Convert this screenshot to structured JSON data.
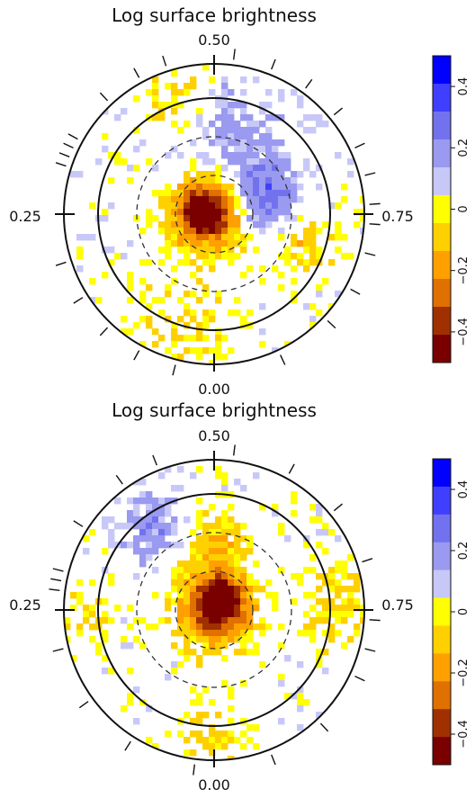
{
  "chart_data": [
    {
      "type": "heatmap",
      "title": "Log surface brightness",
      "phase_labels": {
        "top": "0.50",
        "left": "0.25",
        "right": "0.75",
        "bottom": "0.00"
      },
      "colorbar": {
        "range": [
          -0.5,
          0.5
        ],
        "ticks": [
          "0.4",
          "0.2",
          "0",
          "−0.2",
          "−0.4"
        ],
        "tick_values": [
          0.4,
          0.2,
          0.0,
          -0.2,
          -0.4
        ],
        "levels": [
          {
            "value": 0.45,
            "color": "#0000ff"
          },
          {
            "value": 0.35,
            "color": "#3f3fff"
          },
          {
            "value": 0.25,
            "color": "#7272ef"
          },
          {
            "value": 0.15,
            "color": "#9a9af0"
          },
          {
            "value": 0.05,
            "color": "#c8c8f8"
          },
          {
            "value": -0.05,
            "color": "#ffff00"
          },
          {
            "value": -0.15,
            "color": "#ffd000"
          },
          {
            "value": -0.25,
            "color": "#ffa000"
          },
          {
            "value": -0.35,
            "color": "#e07000"
          },
          {
            "value": -0.45,
            "color": "#a03000"
          },
          {
            "value": -0.5,
            "color": "#7a0000"
          }
        ]
      },
      "observed_phases": [
        0.48,
        0.44,
        0.4,
        0.36,
        0.32,
        0.29,
        0.26,
        0.24,
        0.21,
        0.17,
        0.13,
        0.07,
        0.96,
        0.92,
        0.88,
        0.84,
        0.8,
        0.7,
        0.69,
        0.68,
        0.67,
        0.62,
        0.58,
        0.55
      ],
      "features": [
        {
          "phase": 0.0,
          "radius": 0.0,
          "size": 0.18,
          "value": -0.33
        },
        {
          "phase": 0.7,
          "radius": 0.08,
          "size": 0.12,
          "value": -0.42
        },
        {
          "phase": 0.3,
          "radius": 0.32,
          "size": 0.16,
          "value": 0.28
        },
        {
          "phase": 0.45,
          "radius": 0.55,
          "size": 0.22,
          "value": 0.12
        },
        {
          "phase": 0.95,
          "radius": 0.82,
          "size": 0.22,
          "value": -0.08
        },
        {
          "phase": 0.55,
          "radius": 0.8,
          "size": 0.14,
          "value": -0.1
        },
        {
          "phase": 0.2,
          "radius": 0.62,
          "size": 0.12,
          "value": -0.15
        }
      ]
    },
    {
      "type": "heatmap",
      "title": "Log surface brightness",
      "phase_labels": {
        "top": "0.50",
        "left": "0.25",
        "right": "0.75",
        "bottom": "0.00"
      },
      "colorbar": {
        "range": [
          -0.5,
          0.5
        ],
        "ticks": [
          "0.4",
          "0.2",
          "0",
          "−0.2",
          "−0.4"
        ],
        "tick_values": [
          0.4,
          0.2,
          0.0,
          -0.2,
          -0.4
        ],
        "levels": [
          {
            "value": 0.45,
            "color": "#0000ff"
          },
          {
            "value": 0.35,
            "color": "#3f3fff"
          },
          {
            "value": 0.25,
            "color": "#7272ef"
          },
          {
            "value": 0.15,
            "color": "#9a9af0"
          },
          {
            "value": 0.05,
            "color": "#c8c8f8"
          },
          {
            "value": -0.05,
            "color": "#ffff00"
          },
          {
            "value": -0.15,
            "color": "#ffd000"
          },
          {
            "value": -0.25,
            "color": "#ffa000"
          },
          {
            "value": -0.35,
            "color": "#e07000"
          },
          {
            "value": -0.45,
            "color": "#a03000"
          },
          {
            "value": -0.5,
            "color": "#7a0000"
          }
        ]
      },
      "observed_phases": [
        0.48,
        0.42,
        0.36,
        0.3,
        0.24,
        0.21,
        0.18,
        0.12,
        0.06,
        0.98,
        0.91,
        0.85,
        0.79,
        0.73,
        0.72,
        0.71,
        0.66,
        0.6,
        0.56
      ],
      "features": [
        {
          "phase": 0.0,
          "radius": 0.0,
          "size": 0.16,
          "value": -0.46
        },
        {
          "phase": 0.4,
          "radius": 0.1,
          "size": 0.1,
          "value": -0.38
        },
        {
          "phase": 0.5,
          "radius": 0.42,
          "size": 0.14,
          "value": -0.18
        },
        {
          "phase": 0.25,
          "radius": 0.85,
          "size": 0.16,
          "value": -0.12
        },
        {
          "phase": 0.0,
          "radius": 0.88,
          "size": 0.16,
          "value": -0.1
        },
        {
          "phase": 0.75,
          "radius": 0.85,
          "size": 0.12,
          "value": -0.08
        },
        {
          "phase": 0.6,
          "radius": 0.65,
          "size": 0.14,
          "value": 0.18
        }
      ]
    }
  ]
}
